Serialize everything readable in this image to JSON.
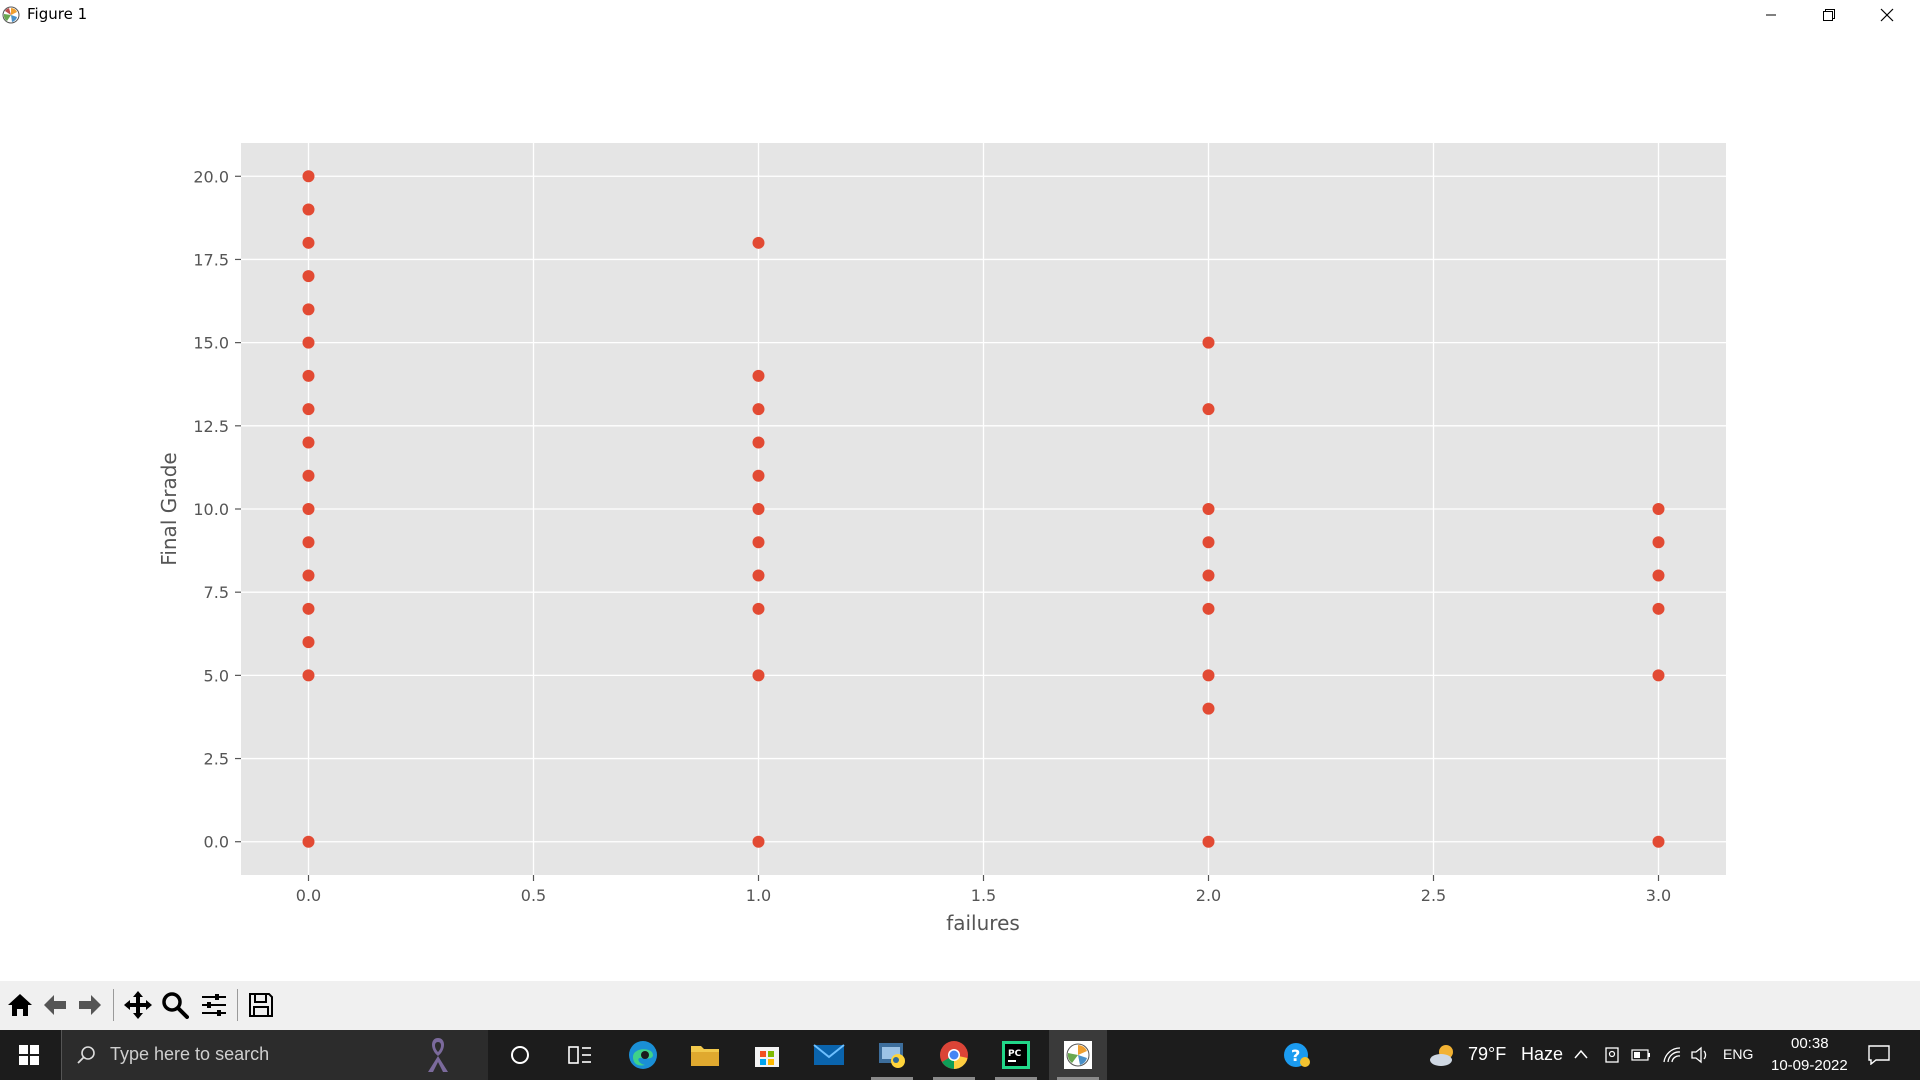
{
  "window": {
    "title": "Figure 1"
  },
  "chart_data": {
    "type": "scatter",
    "title": "",
    "xlabel": "failures",
    "ylabel": "Final Grade",
    "xlim": [
      -0.15,
      3.15
    ],
    "ylim": [
      -1.0,
      21.0
    ],
    "xticks": [
      "0.0",
      "0.5",
      "1.0",
      "1.5",
      "2.0",
      "2.5",
      "3.0"
    ],
    "yticks": [
      "0.0",
      "2.5",
      "5.0",
      "7.5",
      "10.0",
      "12.5",
      "15.0",
      "17.5",
      "20.0"
    ],
    "grid": true,
    "style": "ggplot",
    "marker_color": "#E24A33",
    "points": [
      {
        "x": 0,
        "y": 20
      },
      {
        "x": 0,
        "y": 19
      },
      {
        "x": 0,
        "y": 18
      },
      {
        "x": 0,
        "y": 17
      },
      {
        "x": 0,
        "y": 16
      },
      {
        "x": 0,
        "y": 15
      },
      {
        "x": 0,
        "y": 14
      },
      {
        "x": 0,
        "y": 13
      },
      {
        "x": 0,
        "y": 12
      },
      {
        "x": 0,
        "y": 11
      },
      {
        "x": 0,
        "y": 10
      },
      {
        "x": 0,
        "y": 9
      },
      {
        "x": 0,
        "y": 8
      },
      {
        "x": 0,
        "y": 7
      },
      {
        "x": 0,
        "y": 6
      },
      {
        "x": 0,
        "y": 5
      },
      {
        "x": 0,
        "y": 0
      },
      {
        "x": 1,
        "y": 18
      },
      {
        "x": 1,
        "y": 14
      },
      {
        "x": 1,
        "y": 13
      },
      {
        "x": 1,
        "y": 12
      },
      {
        "x": 1,
        "y": 11
      },
      {
        "x": 1,
        "y": 10
      },
      {
        "x": 1,
        "y": 9
      },
      {
        "x": 1,
        "y": 8
      },
      {
        "x": 1,
        "y": 7
      },
      {
        "x": 1,
        "y": 5
      },
      {
        "x": 1,
        "y": 0
      },
      {
        "x": 2,
        "y": 15
      },
      {
        "x": 2,
        "y": 13
      },
      {
        "x": 2,
        "y": 10
      },
      {
        "x": 2,
        "y": 9
      },
      {
        "x": 2,
        "y": 8
      },
      {
        "x": 2,
        "y": 7
      },
      {
        "x": 2,
        "y": 5
      },
      {
        "x": 2,
        "y": 4
      },
      {
        "x": 2,
        "y": 0
      },
      {
        "x": 3,
        "y": 10
      },
      {
        "x": 3,
        "y": 9
      },
      {
        "x": 3,
        "y": 8
      },
      {
        "x": 3,
        "y": 7
      },
      {
        "x": 3,
        "y": 5
      },
      {
        "x": 3,
        "y": 0
      }
    ]
  },
  "toolbar": {
    "icons": [
      "home-icon",
      "back-icon",
      "forward-icon",
      "pan-icon",
      "zoom-icon",
      "configure-subplots-icon",
      "save-icon"
    ]
  },
  "taskbar": {
    "search_placeholder": "Type here to search",
    "weather_temp": "79°F",
    "weather_desc": "Haze",
    "language": "ENG",
    "time": "00:38",
    "date": "10-09-2022"
  }
}
